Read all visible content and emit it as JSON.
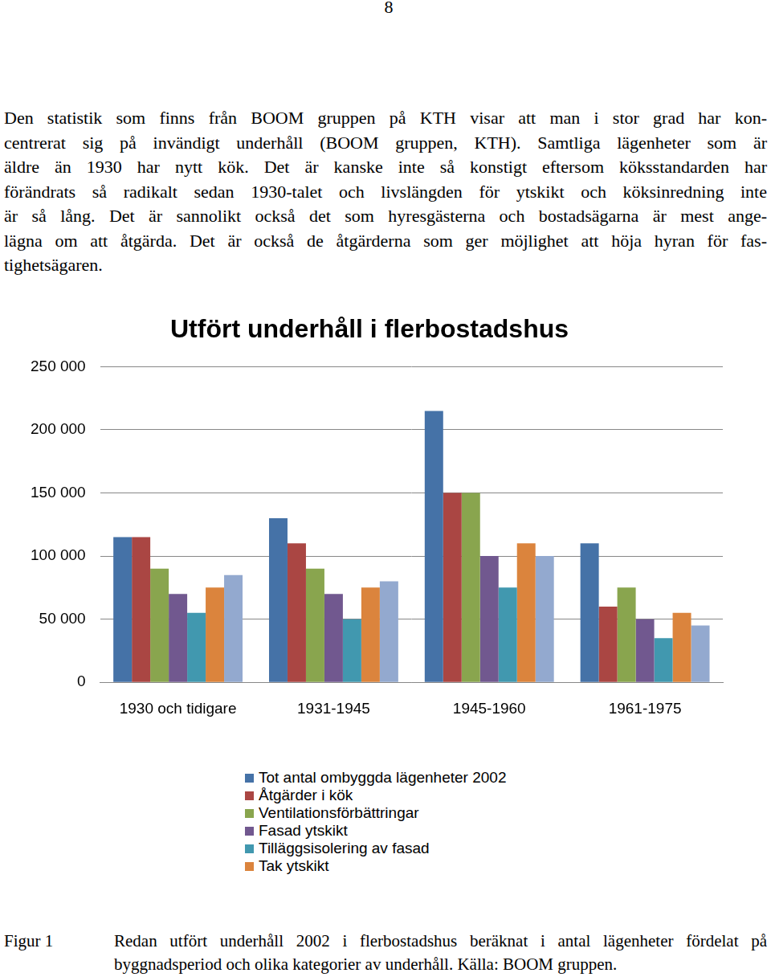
{
  "page_number": "8",
  "body": {
    "lines": [
      "Den statistik som finns från BOOM gruppen på KTH visar att man i stor grad har kon-",
      "centrerat sig på invändigt underhåll (BOOM gruppen, KTH). Samtliga lägenheter som är",
      "äldre än 1930 har nytt kök. Det är kanske inte så konstigt eftersom köksstandarden har",
      "förändrats så radikalt sedan 1930-talet och livslängden för ytskikt och köksinredning inte",
      "är så lång. Det är sannolikt också det som hyresgästerna och bostadsägarna är mest ange-",
      "lägna om att åtgärda. Det är också de åtgärderna som ger möjlighet att höja hyran för fas-",
      "tighetsägaren."
    ]
  },
  "chart_data": {
    "type": "bar",
    "title": "Utfört underhåll i flerbostadshus",
    "categories": [
      "1930 och tidigare",
      "1931-1945",
      "1945-1960",
      "1961-1975"
    ],
    "series": [
      {
        "name": "Tot antal ombyggda lägenheter 2002",
        "color": "#4572A7",
        "values": [
          115000,
          130000,
          215000,
          110000
        ]
      },
      {
        "name": "Åtgärder i kök",
        "color": "#AA4643",
        "values": [
          115000,
          110000,
          150000,
          60000
        ]
      },
      {
        "name": "Ventilationsförbättringar",
        "color": "#89A54E",
        "values": [
          90000,
          90000,
          150000,
          75000
        ]
      },
      {
        "name": "Fasad ytskikt",
        "color": "#71588F",
        "values": [
          70000,
          70000,
          100000,
          50000
        ]
      },
      {
        "name": "Tilläggsisolering av fasad",
        "color": "#4198AF",
        "values": [
          55000,
          50000,
          75000,
          35000
        ]
      },
      {
        "name": "Tak ytskikt",
        "color": "#DB843D",
        "values": [
          75000,
          75000,
          110000,
          55000
        ]
      },
      {
        "name": null,
        "color": "#93A9CF",
        "values": [
          85000,
          80000,
          100000,
          45000
        ]
      }
    ],
    "ylim": [
      0,
      250000
    ],
    "yticks": [
      0,
      {
        "value": 50000,
        "label": "50 000"
      },
      {
        "value": 100000,
        "label": "100 000"
      },
      {
        "value": 150000,
        "label": "150 000"
      },
      {
        "value": 200000,
        "label": "200 000"
      },
      {
        "value": 250000,
        "label": "250 000"
      }
    ],
    "grid": true,
    "legend": "bottom"
  },
  "caption": {
    "label": "Figur 1",
    "lines": [
      "Redan utfört underhåll 2002 i flerbostadshus beräknat i antal lägenheter fördelat på",
      "byggnadsperiod och olika kategorier av underhåll. Källa: BOOM gruppen."
    ]
  }
}
